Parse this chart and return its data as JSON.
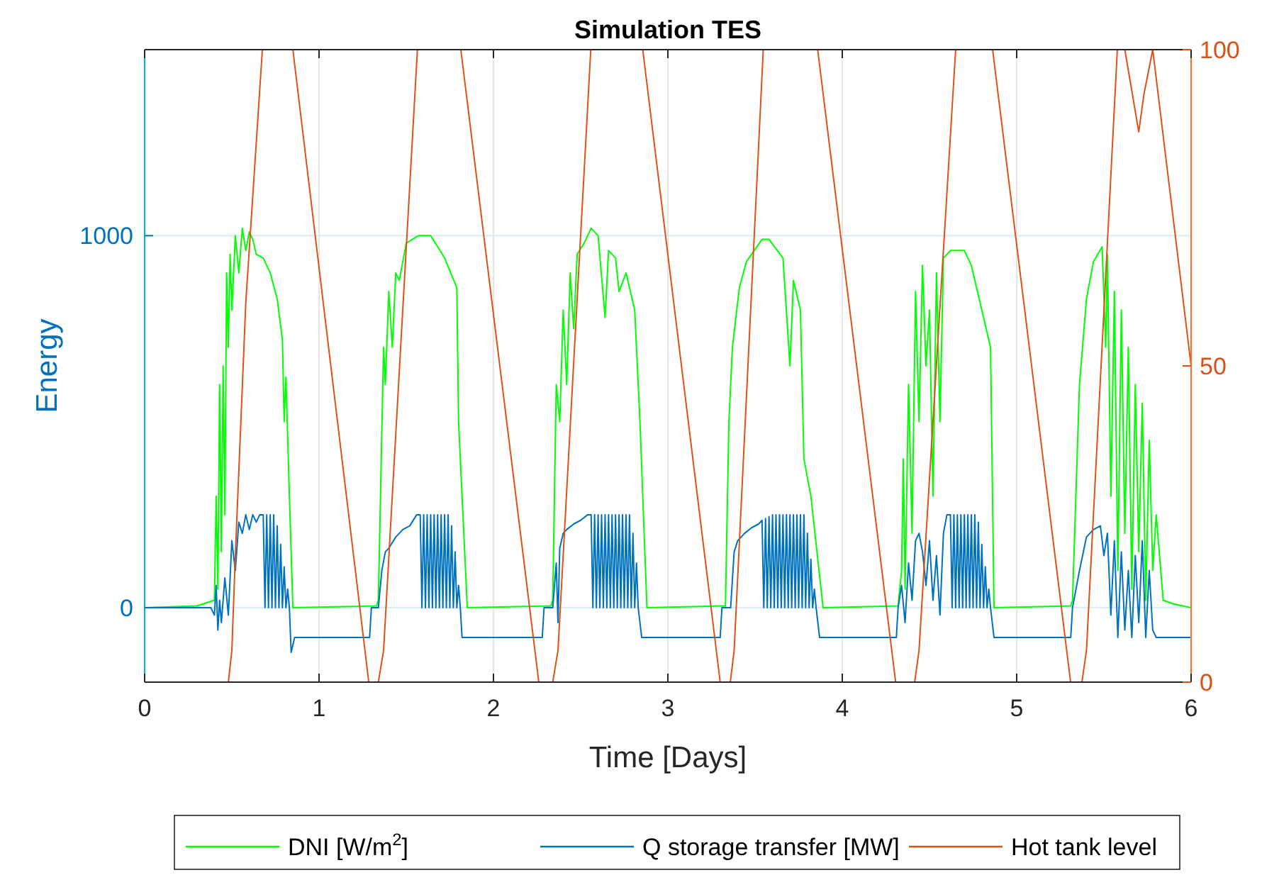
{
  "chart_data": {
    "type": "line",
    "title": "Simulation TES",
    "xlabel": "Time [Days]",
    "ylabel": "Energy",
    "xlim": [
      0,
      6
    ],
    "xticks": [
      0,
      1,
      2,
      3,
      4,
      5,
      6
    ],
    "ylim": [
      -200,
      1500
    ],
    "yticks": [
      0,
      1000
    ],
    "y2lim": [
      0,
      100
    ],
    "y2ticks": [
      0,
      50,
      100
    ],
    "grid": true,
    "legend": "bottom",
    "series": [
      {
        "name": "DNI [W/m$^{2}$]",
        "color": "#00ff00",
        "axis": "y",
        "x": [
          0,
          0.3,
          0.4,
          0.41,
          0.42,
          0.43,
          0.44,
          0.45,
          0.46,
          0.47,
          0.48,
          0.49,
          0.5,
          0.52,
          0.54,
          0.56,
          0.58,
          0.6,
          0.62,
          0.64,
          0.68,
          0.72,
          0.76,
          0.79,
          0.8,
          0.81,
          0.83,
          0.85,
          1.33,
          1.34,
          1.37,
          1.38,
          1.4,
          1.42,
          1.44,
          1.46,
          1.5,
          1.57,
          1.64,
          1.72,
          1.79,
          1.8,
          1.82,
          1.85,
          2.33,
          2.34,
          2.36,
          2.38,
          2.4,
          2.42,
          2.44,
          2.46,
          2.48,
          2.52,
          2.56,
          2.6,
          2.64,
          2.66,
          2.7,
          2.72,
          2.76,
          2.81,
          2.84,
          2.88,
          3.33,
          3.35,
          3.37,
          3.41,
          3.45,
          3.54,
          3.58,
          3.66,
          3.7,
          3.72,
          3.76,
          3.78,
          3.82,
          3.89,
          4.32,
          4.34,
          4.35,
          4.36,
          4.38,
          4.4,
          4.42,
          4.44,
          4.46,
          4.48,
          4.5,
          4.52,
          4.54,
          4.56,
          4.58,
          4.62,
          4.66,
          4.7,
          4.74,
          4.8,
          4.85,
          4.87,
          5.31,
          5.32,
          5.36,
          5.4,
          5.44,
          5.49,
          5.51,
          5.52,
          5.54,
          5.56,
          5.58,
          5.6,
          5.62,
          5.64,
          5.66,
          5.68,
          5.7,
          5.72,
          5.74,
          5.76,
          5.78,
          5.8,
          5.84,
          5.9,
          6
        ],
        "values": [
          0,
          5,
          20,
          300,
          50,
          600,
          150,
          650,
          250,
          900,
          700,
          950,
          800,
          1000,
          900,
          1020,
          960,
          1010,
          990,
          950,
          940,
          900,
          830,
          720,
          500,
          620,
          300,
          0,
          5,
          20,
          700,
          600,
          850,
          700,
          900,
          880,
          980,
          1000,
          1000,
          940,
          860,
          500,
          300,
          0,
          5,
          20,
          600,
          500,
          800,
          600,
          900,
          750,
          950,
          980,
          1020,
          1000,
          780,
          960,
          940,
          850,
          900,
          800,
          500,
          0,
          5,
          500,
          700,
          860,
          930,
          990,
          990,
          940,
          650,
          880,
          800,
          400,
          300,
          0,
          5,
          100,
          400,
          50,
          600,
          200,
          850,
          500,
          920,
          650,
          800,
          300,
          900,
          500,
          940,
          960,
          960,
          960,
          920,
          800,
          700,
          0,
          5,
          20,
          600,
          830,
          930,
          970,
          700,
          950,
          300,
          850,
          100,
          800,
          200,
          700,
          50,
          600,
          150,
          550,
          20,
          450,
          100,
          250,
          20,
          10,
          0
        ]
      },
      {
        "name": "Q storage transfer [MW]",
        "color": "#0072bd",
        "axis": "y",
        "x": [
          0,
          0.38,
          0.4,
          0.41,
          0.42,
          0.43,
          0.44,
          0.46,
          0.48,
          0.5,
          0.52,
          0.54,
          0.56,
          0.58,
          0.6,
          0.62,
          0.64,
          0.66,
          0.68,
          0.69,
          0.7,
          0.71,
          0.72,
          0.73,
          0.74,
          0.75,
          0.76,
          0.77,
          0.78,
          0.79,
          0.8,
          0.81,
          0.82,
          0.83,
          0.84,
          0.86,
          1.29,
          1.3,
          1.34,
          1.36,
          1.38,
          1.4,
          1.44,
          1.48,
          1.52,
          1.56,
          1.58,
          1.59,
          1.6,
          1.61,
          1.62,
          1.63,
          1.64,
          1.65,
          1.66,
          1.67,
          1.68,
          1.69,
          1.7,
          1.71,
          1.72,
          1.73,
          1.74,
          1.75,
          1.76,
          1.77,
          1.78,
          1.79,
          1.8,
          1.81,
          1.82,
          2.28,
          2.29,
          2.34,
          2.36,
          2.37,
          2.38,
          2.4,
          2.42,
          2.46,
          2.5,
          2.54,
          2.56,
          2.57,
          2.58,
          2.59,
          2.6,
          2.61,
          2.62,
          2.63,
          2.64,
          2.65,
          2.66,
          2.67,
          2.68,
          2.69,
          2.7,
          2.71,
          2.72,
          2.73,
          2.74,
          2.75,
          2.76,
          2.77,
          2.78,
          2.79,
          2.8,
          2.81,
          2.82,
          2.83,
          2.85,
          3.3,
          3.31,
          3.36,
          3.38,
          3.4,
          3.44,
          3.48,
          3.52,
          3.54,
          3.55,
          3.56,
          3.57,
          3.58,
          3.59,
          3.6,
          3.61,
          3.62,
          3.63,
          3.64,
          3.65,
          3.66,
          3.67,
          3.68,
          3.69,
          3.7,
          3.71,
          3.72,
          3.73,
          3.74,
          3.75,
          3.76,
          3.77,
          3.78,
          3.79,
          3.8,
          3.81,
          3.82,
          3.83,
          3.84,
          3.85,
          3.87,
          4.31,
          4.32,
          4.34,
          4.36,
          4.38,
          4.4,
          4.42,
          4.44,
          4.46,
          4.48,
          4.5,
          4.52,
          4.54,
          4.56,
          4.58,
          4.6,
          4.62,
          4.63,
          4.64,
          4.65,
          4.66,
          4.67,
          4.68,
          4.69,
          4.7,
          4.71,
          4.72,
          4.73,
          4.74,
          4.75,
          4.76,
          4.77,
          4.78,
          4.79,
          4.8,
          4.81,
          4.82,
          4.83,
          4.84,
          4.85,
          4.87,
          5.31,
          5.32,
          5.36,
          5.4,
          5.44,
          5.48,
          5.5,
          5.52,
          5.54,
          5.56,
          5.58,
          5.6,
          5.62,
          5.64,
          5.66,
          5.68,
          5.7,
          5.72,
          5.74,
          5.76,
          5.78,
          5.8,
          6
        ],
        "values": [
          0,
          0,
          -20,
          60,
          -60,
          20,
          -40,
          80,
          -20,
          180,
          100,
          230,
          200,
          250,
          210,
          250,
          230,
          250,
          250,
          0,
          250,
          0,
          250,
          0,
          250,
          0,
          220,
          0,
          170,
          0,
          110,
          0,
          50,
          0,
          -120,
          -80,
          -80,
          0,
          0,
          100,
          150,
          160,
          190,
          210,
          220,
          250,
          250,
          0,
          250,
          0,
          250,
          0,
          250,
          0,
          250,
          0,
          250,
          0,
          250,
          0,
          250,
          0,
          250,
          0,
          220,
          0,
          150,
          0,
          60,
          0,
          -80,
          -80,
          0,
          0,
          120,
          -40,
          160,
          200,
          210,
          225,
          235,
          250,
          250,
          0,
          250,
          0,
          250,
          0,
          250,
          0,
          250,
          0,
          250,
          0,
          250,
          0,
          250,
          0,
          250,
          0,
          250,
          0,
          250,
          0,
          250,
          0,
          200,
          0,
          120,
          0,
          -80,
          -80,
          0,
          0,
          150,
          180,
          200,
          215,
          225,
          235,
          0,
          240,
          0,
          245,
          0,
          250,
          0,
          250,
          0,
          250,
          0,
          250,
          0,
          250,
          0,
          250,
          0,
          250,
          0,
          250,
          0,
          250,
          0,
          250,
          0,
          200,
          0,
          130,
          0,
          50,
          0,
          -80,
          -80,
          0,
          60,
          -40,
          120,
          20,
          180,
          200,
          150,
          60,
          180,
          20,
          140,
          -20,
          200,
          250,
          250,
          0,
          250,
          0,
          250,
          0,
          250,
          0,
          250,
          0,
          250,
          0,
          250,
          0,
          250,
          0,
          230,
          0,
          170,
          0,
          110,
          0,
          50,
          0,
          -80,
          -80,
          0,
          100,
          190,
          210,
          220,
          140,
          200,
          -20,
          180,
          -80,
          150,
          -60,
          100,
          -80,
          140,
          -40,
          180,
          -80,
          100,
          -60,
          -80,
          -80
        ]
      },
      {
        "name": "Hot tank level",
        "color": "#d95319",
        "axis": "y2",
        "x": [
          0,
          0.48,
          0.5,
          0.52,
          0.58,
          0.675,
          0.85,
          1.285,
          1.34,
          1.37,
          1.564,
          1.813,
          2.26,
          2.34,
          2.37,
          2.558,
          2.856,
          3.3,
          3.358,
          3.38,
          3.547,
          3.859,
          4.306,
          4.415,
          4.44,
          4.65,
          4.862,
          5.309,
          5.374,
          5.4,
          5.577,
          5.62,
          5.7,
          5.73,
          5.78,
          6
        ],
        "values": [
          0,
          0,
          5,
          20,
          60,
          100,
          100,
          0,
          0,
          5,
          100,
          100,
          0,
          0,
          5,
          100,
          100,
          0,
          0,
          5,
          100,
          100,
          0,
          0,
          5,
          100,
          100,
          0,
          0,
          5,
          100,
          100,
          87,
          93,
          100,
          50
        ]
      }
    ]
  }
}
